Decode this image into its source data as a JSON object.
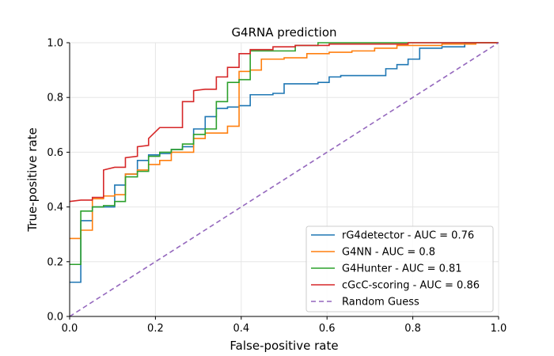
{
  "chart_data": {
    "type": "line",
    "title": "G4RNA prediction",
    "xlabel": "False-positive rate",
    "ylabel": "True-positive rate",
    "xlim": [
      0,
      1
    ],
    "ylim": [
      0,
      1
    ],
    "xticks": [
      "0.0",
      "0.2",
      "0.4",
      "0.6",
      "0.8",
      "1.0"
    ],
    "yticks": [
      "0.0",
      "0.2",
      "0.4",
      "0.6",
      "0.8",
      "1.0"
    ],
    "grid": true,
    "legend_position": "lower-right",
    "series": [
      {
        "name": "rG4detector - AUC = 0.76",
        "color": "#1f77b4",
        "dash": "",
        "points": [
          [
            0,
            0.125
          ],
          [
            0.026,
            0.125
          ],
          [
            0.026,
            0.35
          ],
          [
            0.053,
            0.35
          ],
          [
            0.053,
            0.4
          ],
          [
            0.105,
            0.4
          ],
          [
            0.105,
            0.48
          ],
          [
            0.13,
            0.48
          ],
          [
            0.13,
            0.52
          ],
          [
            0.158,
            0.52
          ],
          [
            0.158,
            0.57
          ],
          [
            0.184,
            0.57
          ],
          [
            0.184,
            0.59
          ],
          [
            0.21,
            0.59
          ],
          [
            0.21,
            0.595
          ],
          [
            0.237,
            0.595
          ],
          [
            0.237,
            0.61
          ],
          [
            0.263,
            0.61
          ],
          [
            0.263,
            0.62
          ],
          [
            0.289,
            0.62
          ],
          [
            0.289,
            0.685
          ],
          [
            0.316,
            0.685
          ],
          [
            0.316,
            0.73
          ],
          [
            0.342,
            0.73
          ],
          [
            0.342,
            0.76
          ],
          [
            0.368,
            0.76
          ],
          [
            0.368,
            0.765
          ],
          [
            0.395,
            0.765
          ],
          [
            0.395,
            0.77
          ],
          [
            0.421,
            0.77
          ],
          [
            0.421,
            0.81
          ],
          [
            0.474,
            0.81
          ],
          [
            0.474,
            0.815
          ],
          [
            0.5,
            0.815
          ],
          [
            0.5,
            0.85
          ],
          [
            0.579,
            0.85
          ],
          [
            0.579,
            0.855
          ],
          [
            0.605,
            0.855
          ],
          [
            0.605,
            0.875
          ],
          [
            0.632,
            0.875
          ],
          [
            0.632,
            0.88
          ],
          [
            0.737,
            0.88
          ],
          [
            0.737,
            0.905
          ],
          [
            0.763,
            0.905
          ],
          [
            0.763,
            0.92
          ],
          [
            0.789,
            0.92
          ],
          [
            0.789,
            0.94
          ],
          [
            0.816,
            0.94
          ],
          [
            0.816,
            0.98
          ],
          [
            0.868,
            0.98
          ],
          [
            0.868,
            0.985
          ],
          [
            0.921,
            0.985
          ],
          [
            0.921,
            1.0
          ],
          [
            1.0,
            1.0
          ]
        ]
      },
      {
        "name": "G4NN - AUC = 0.8",
        "color": "#ff7f0e",
        "dash": "",
        "points": [
          [
            0,
            0.285
          ],
          [
            0.026,
            0.285
          ],
          [
            0.026,
            0.315
          ],
          [
            0.053,
            0.315
          ],
          [
            0.053,
            0.43
          ],
          [
            0.079,
            0.43
          ],
          [
            0.079,
            0.44
          ],
          [
            0.105,
            0.44
          ],
          [
            0.105,
            0.445
          ],
          [
            0.13,
            0.445
          ],
          [
            0.13,
            0.52
          ],
          [
            0.158,
            0.52
          ],
          [
            0.158,
            0.535
          ],
          [
            0.184,
            0.535
          ],
          [
            0.184,
            0.555
          ],
          [
            0.21,
            0.555
          ],
          [
            0.21,
            0.57
          ],
          [
            0.237,
            0.57
          ],
          [
            0.237,
            0.6
          ],
          [
            0.289,
            0.6
          ],
          [
            0.289,
            0.65
          ],
          [
            0.316,
            0.65
          ],
          [
            0.316,
            0.67
          ],
          [
            0.368,
            0.67
          ],
          [
            0.368,
            0.695
          ],
          [
            0.395,
            0.695
          ],
          [
            0.395,
            0.895
          ],
          [
            0.421,
            0.895
          ],
          [
            0.421,
            0.9
          ],
          [
            0.447,
            0.9
          ],
          [
            0.447,
            0.94
          ],
          [
            0.5,
            0.94
          ],
          [
            0.5,
            0.945
          ],
          [
            0.553,
            0.945
          ],
          [
            0.553,
            0.96
          ],
          [
            0.605,
            0.96
          ],
          [
            0.605,
            0.965
          ],
          [
            0.658,
            0.965
          ],
          [
            0.658,
            0.97
          ],
          [
            0.711,
            0.97
          ],
          [
            0.711,
            0.98
          ],
          [
            0.763,
            0.98
          ],
          [
            0.763,
            0.99
          ],
          [
            0.868,
            0.99
          ],
          [
            0.868,
            0.995
          ],
          [
            0.947,
            0.995
          ],
          [
            0.947,
            1.0
          ],
          [
            1.0,
            1.0
          ]
        ]
      },
      {
        "name": "G4Hunter - AUC = 0.81",
        "color": "#2ca02c",
        "dash": "",
        "points": [
          [
            0,
            0.19
          ],
          [
            0.026,
            0.19
          ],
          [
            0.026,
            0.385
          ],
          [
            0.053,
            0.385
          ],
          [
            0.053,
            0.4
          ],
          [
            0.079,
            0.4
          ],
          [
            0.079,
            0.405
          ],
          [
            0.105,
            0.405
          ],
          [
            0.105,
            0.42
          ],
          [
            0.13,
            0.42
          ],
          [
            0.13,
            0.51
          ],
          [
            0.158,
            0.51
          ],
          [
            0.158,
            0.53
          ],
          [
            0.184,
            0.53
          ],
          [
            0.184,
            0.585
          ],
          [
            0.21,
            0.585
          ],
          [
            0.21,
            0.6
          ],
          [
            0.237,
            0.6
          ],
          [
            0.237,
            0.61
          ],
          [
            0.263,
            0.61
          ],
          [
            0.263,
            0.63
          ],
          [
            0.289,
            0.63
          ],
          [
            0.289,
            0.665
          ],
          [
            0.316,
            0.665
          ],
          [
            0.316,
            0.685
          ],
          [
            0.342,
            0.685
          ],
          [
            0.342,
            0.785
          ],
          [
            0.368,
            0.785
          ],
          [
            0.368,
            0.855
          ],
          [
            0.395,
            0.855
          ],
          [
            0.395,
            0.865
          ],
          [
            0.421,
            0.865
          ],
          [
            0.421,
            0.97
          ],
          [
            0.526,
            0.97
          ],
          [
            0.526,
            0.99
          ],
          [
            0.579,
            0.99
          ],
          [
            0.579,
            1.0
          ],
          [
            1.0,
            1.0
          ]
        ]
      },
      {
        "name": "cGcC-scoring - AUC = 0.86",
        "color": "#d62728",
        "dash": "",
        "points": [
          [
            0,
            0.42
          ],
          [
            0.026,
            0.425
          ],
          [
            0.053,
            0.425
          ],
          [
            0.053,
            0.435
          ],
          [
            0.079,
            0.435
          ],
          [
            0.079,
            0.535
          ],
          [
            0.105,
            0.545
          ],
          [
            0.13,
            0.545
          ],
          [
            0.13,
            0.58
          ],
          [
            0.158,
            0.585
          ],
          [
            0.158,
            0.62
          ],
          [
            0.184,
            0.625
          ],
          [
            0.184,
            0.65
          ],
          [
            0.21,
            0.69
          ],
          [
            0.263,
            0.69
          ],
          [
            0.263,
            0.785
          ],
          [
            0.289,
            0.785
          ],
          [
            0.289,
            0.825
          ],
          [
            0.316,
            0.83
          ],
          [
            0.342,
            0.83
          ],
          [
            0.342,
            0.875
          ],
          [
            0.368,
            0.875
          ],
          [
            0.368,
            0.91
          ],
          [
            0.395,
            0.91
          ],
          [
            0.395,
            0.96
          ],
          [
            0.421,
            0.96
          ],
          [
            0.421,
            0.975
          ],
          [
            0.474,
            0.975
          ],
          [
            0.474,
            0.985
          ],
          [
            0.526,
            0.985
          ],
          [
            0.526,
            0.99
          ],
          [
            0.605,
            0.99
          ],
          [
            0.605,
            0.995
          ],
          [
            0.789,
            0.995
          ],
          [
            0.789,
            1.0
          ],
          [
            1.0,
            1.0
          ]
        ]
      },
      {
        "name": "Random Guess",
        "color": "#9467bd",
        "dash": "6,4",
        "points": [
          [
            0,
            0
          ],
          [
            1,
            1
          ]
        ]
      }
    ]
  }
}
